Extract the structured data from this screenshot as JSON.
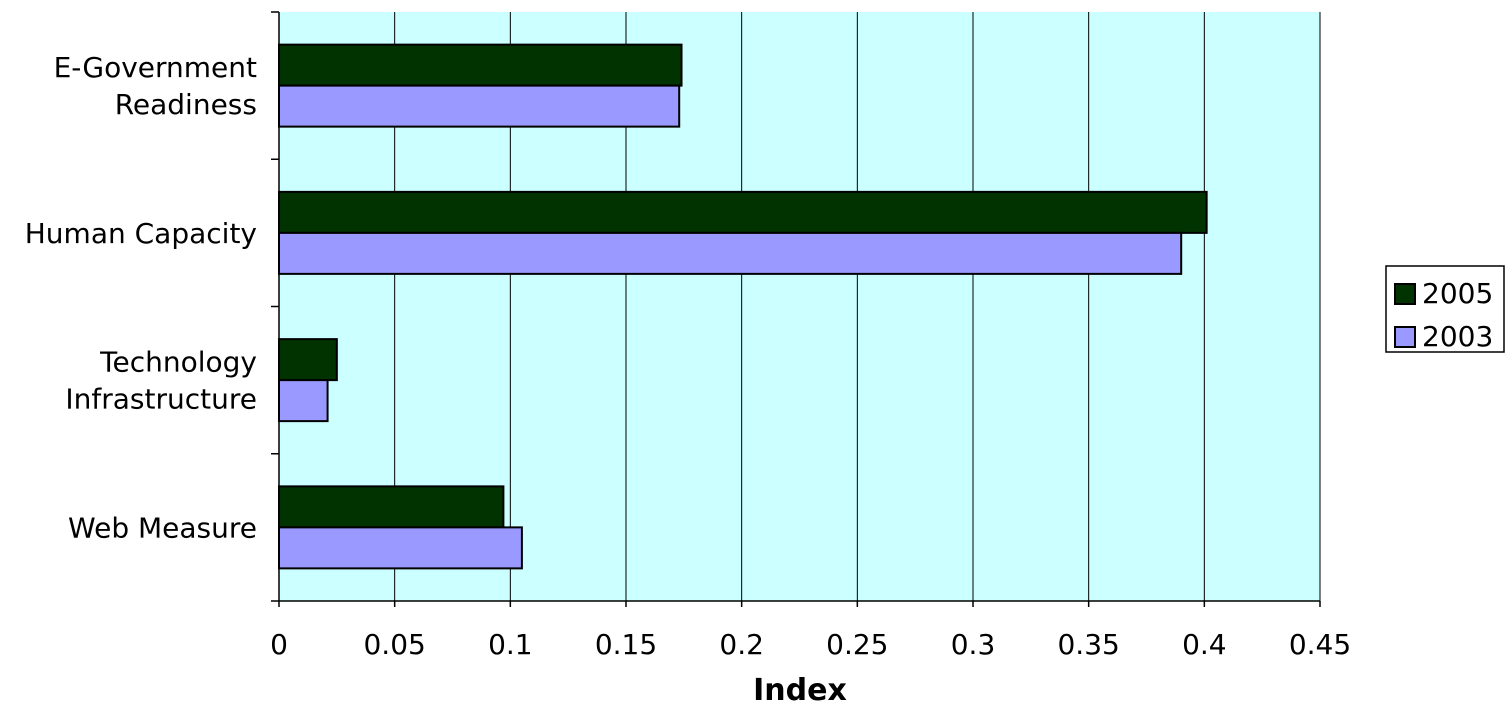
{
  "chart_data": {
    "type": "bar",
    "orientation": "horizontal",
    "categories": [
      [
        "E-Government",
        "Readiness"
      ],
      [
        "Human Capacity"
      ],
      [
        "Technology",
        "Infrastructure"
      ],
      [
        "Web Measure"
      ]
    ],
    "series": [
      {
        "name": "2005",
        "color": "#003300",
        "values": [
          0.174,
          0.401,
          0.025,
          0.097
        ]
      },
      {
        "name": "2003",
        "color": "#9999ff",
        "values": [
          0.173,
          0.39,
          0.021,
          0.105
        ]
      }
    ],
    "xlabel": "Index",
    "xlim": [
      0,
      0.45
    ],
    "xticks": [
      "0",
      "0.05",
      "0.1",
      "0.15",
      "0.2",
      "0.25",
      "0.3",
      "0.35",
      "0.4",
      "0.45"
    ],
    "plot_background": "#ccffff",
    "grid": "vertical",
    "legend_position": "right"
  }
}
